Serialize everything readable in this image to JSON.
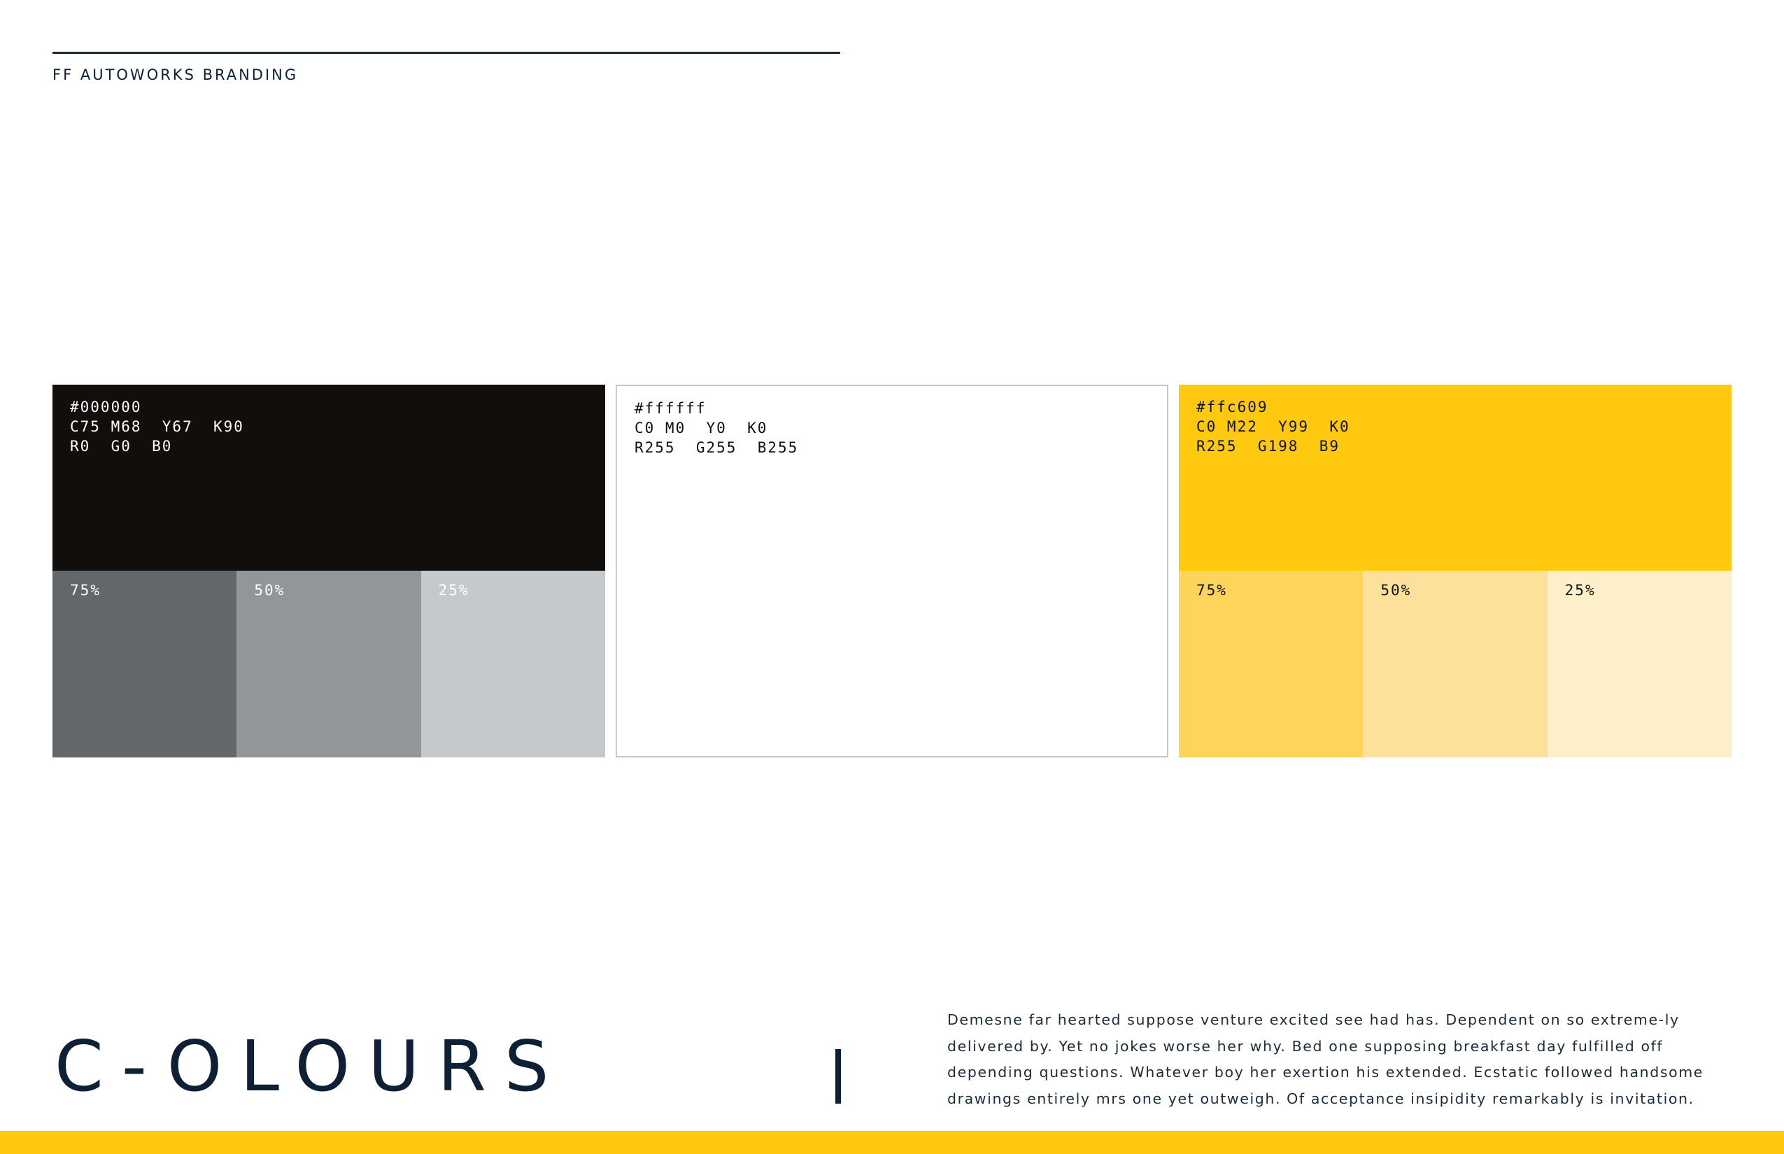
{
  "header": {
    "brand_label": "FF AUTOWORKS BRANDING"
  },
  "palette": {
    "black": {
      "hex": "#000000",
      "cmyk": "C75 M68  Y67  K90",
      "rgb": "R0  G0  B0",
      "swatch_color": "#110e0b",
      "text_color": "#ffffff",
      "tints": [
        {
          "label": "75%",
          "color": "#636769",
          "text_color": "#ffffff"
        },
        {
          "label": "50%",
          "color": "#939698",
          "text_color": "#ffffff"
        },
        {
          "label": "25%",
          "color": "#c6c9cb",
          "text_color": "#ffffff"
        }
      ]
    },
    "white": {
      "hex": "#ffffff",
      "cmyk": "C0 M0  Y0  K0",
      "rgb": "R255  G255  B255",
      "swatch_color": "#ffffff",
      "border_color": "#c6c9cc",
      "text_color": "#111111"
    },
    "yellow": {
      "hex": "#ffc609",
      "cmyk": "C0 M22  Y99  K0",
      "rgb": "R255  G198  B9",
      "swatch_color": "#fec90f",
      "text_color": "#111111",
      "tints": [
        {
          "label": "75%",
          "color": "#fed45a",
          "text_color": "#111111"
        },
        {
          "label": "50%",
          "color": "#fde19a",
          "text_color": "#111111"
        },
        {
          "label": "25%",
          "color": "#fdefca",
          "text_color": "#111111"
        }
      ]
    }
  },
  "footer": {
    "heading": "C-OLOURS",
    "body": "Demesne far hearted suppose venture excited see had has. Dependent on so extreme-ly delivered by. Yet no jokes worse her why. Bed one supposing breakfast day fulfilled off depending questions. Whatever boy her exertion his extended. Ecstatic followed handsome drawings entirely mrs one yet outweigh. Of acceptance insipidity remarkably is invitation.",
    "band_color": "#fec90f"
  },
  "accent_colors": {
    "navy": "#0d2035"
  }
}
